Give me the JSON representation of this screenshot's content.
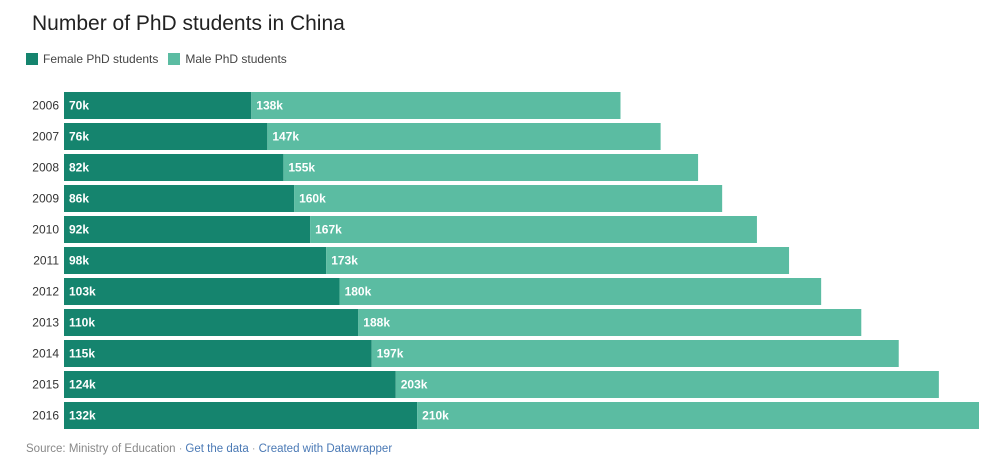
{
  "chart_data": {
    "type": "bar",
    "orientation": "horizontal",
    "stacked": true,
    "title": "Number of PhD students in China",
    "categories": [
      "2006",
      "2007",
      "2008",
      "2009",
      "2010",
      "2011",
      "2012",
      "2013",
      "2014",
      "2015",
      "2016"
    ],
    "series": [
      {
        "name": "Female PhD students",
        "color": "#15846e",
        "values": [
          70,
          76,
          82,
          86,
          92,
          98,
          103,
          110,
          115,
          124,
          132
        ],
        "labels": [
          "70k",
          "76k",
          "82k",
          "86k",
          "92k",
          "98k",
          "103k",
          "110k",
          "115k",
          "124k",
          "132k"
        ]
      },
      {
        "name": "Male PhD students",
        "color": "#5bbca2",
        "values": [
          138,
          147,
          155,
          160,
          167,
          173,
          180,
          188,
          197,
          203,
          210
        ],
        "labels": [
          "138k",
          "147k",
          "155k",
          "160k",
          "167k",
          "173k",
          "180k",
          "188k",
          "197k",
          "203k",
          "210k"
        ]
      }
    ],
    "xlim": [
      0,
      342
    ],
    "legend_position": "top-left",
    "grid": false
  },
  "footer": {
    "source": "Source: Ministry of Education",
    "get_data": "Get the data",
    "created_with": "Created with Datawrapper",
    "separator": "·"
  }
}
